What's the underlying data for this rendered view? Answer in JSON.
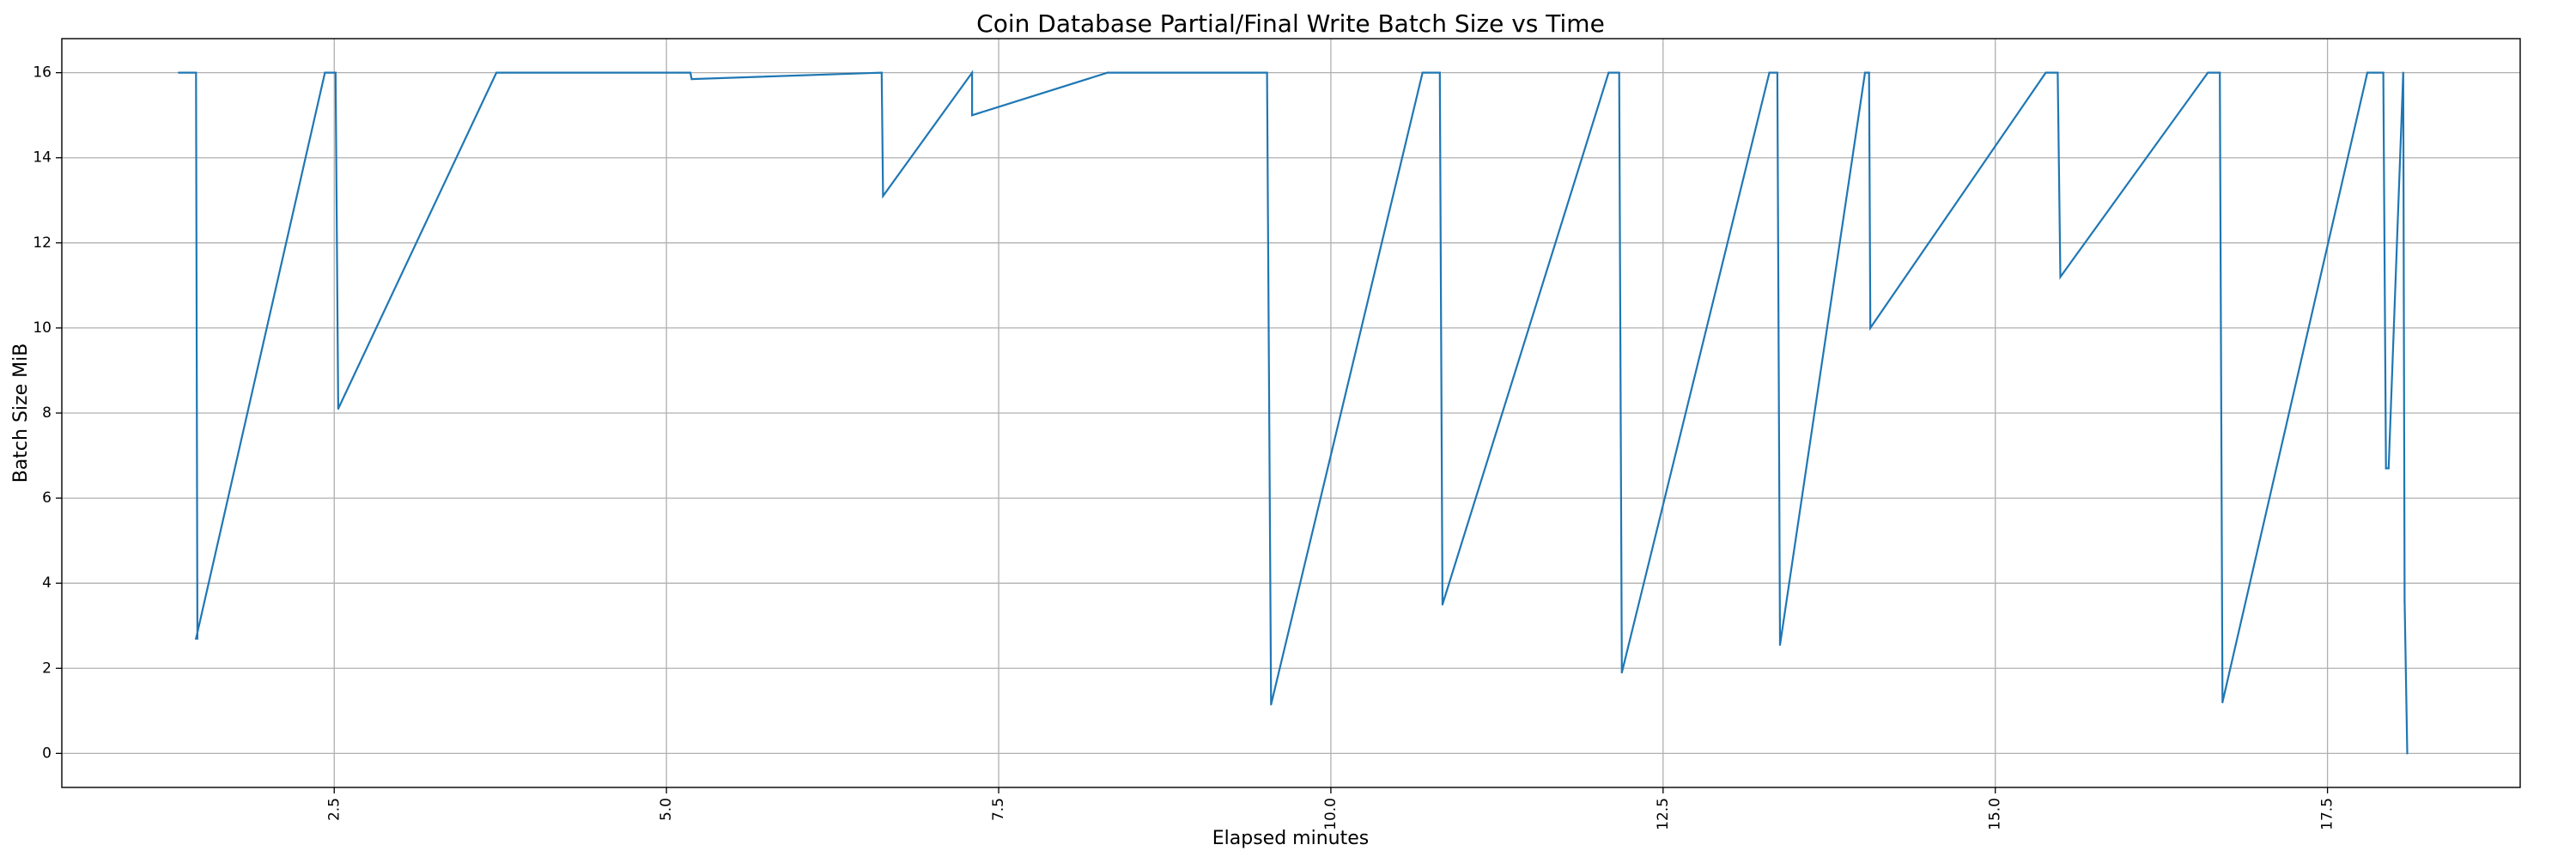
{
  "chart_data": {
    "type": "line",
    "title": "Coin Database Partial/Final Write Batch Size vs Time",
    "xlabel": "Elapsed minutes",
    "ylabel": "Batch Size MiB",
    "xlim": [
      0.45,
      18.95
    ],
    "ylim": [
      -0.8,
      16.8
    ],
    "xticks": [
      2.5,
      5.0,
      7.5,
      10.0,
      12.5,
      15.0,
      17.5
    ],
    "xtick_labels": [
      "2.5",
      "5.0",
      "7.5",
      "10.0",
      "12.5",
      "15.0",
      "17.5"
    ],
    "yticks": [
      0,
      2,
      4,
      6,
      8,
      10,
      12,
      14,
      16
    ],
    "ytick_labels": [
      "0",
      "2",
      "4",
      "6",
      "8",
      "10",
      "12",
      "14",
      "16"
    ],
    "grid": true,
    "series": [
      {
        "color": "#1f77b4",
        "x": [
          1.33,
          1.46,
          1.47,
          1.46,
          2.43,
          2.51,
          2.53,
          3.72,
          3.77,
          5.1,
          5.18,
          5.19,
          6.62,
          6.63,
          7.3,
          7.3,
          8.32,
          8.37,
          9.4,
          9.52,
          9.55,
          10.69,
          10.82,
          10.84,
          12.09,
          12.17,
          12.19,
          13.3,
          13.36,
          13.38,
          14.02,
          14.05,
          14.06,
          15.38,
          15.47,
          15.49,
          16.6,
          16.69,
          16.71,
          17.8,
          17.92,
          17.94,
          17.96,
          18.07,
          18.08,
          18.08,
          18.1
        ],
        "y": [
          16.0,
          16.0,
          2.7,
          2.7,
          16.0,
          16.0,
          8.1,
          16.0,
          16.0,
          16.0,
          16.0,
          15.85,
          16.0,
          13.1,
          16.0,
          15.0,
          16.0,
          16.0,
          16.0,
          16.0,
          1.15,
          16.0,
          16.0,
          3.5,
          16.0,
          16.0,
          1.9,
          16.0,
          16.0,
          2.55,
          16.0,
          16.0,
          10.0,
          16.0,
          16.0,
          11.2,
          16.0,
          16.0,
          1.2,
          16.0,
          16.0,
          6.7,
          6.7,
          16.0,
          3.6,
          3.6,
          0.0
        ]
      }
    ]
  }
}
